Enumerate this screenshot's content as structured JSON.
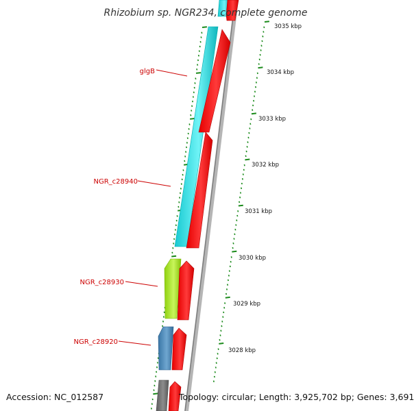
{
  "title": "Rhizobium sp. NGR234, complete genome",
  "genes": [
    {
      "label": "glgB"
    },
    {
      "label": "NGR_c28940"
    },
    {
      "label": "NGR_c28930"
    },
    {
      "label": "NGR_c28920"
    }
  ],
  "kbp_ticks": [
    "3035 kbp",
    "3034 kbp",
    "3033 kbp",
    "3032 kbp",
    "3031 kbp",
    "3030 kbp",
    "3029 kbp",
    "3028 kbp"
  ],
  "footer": {
    "accession": "Accession: NC_012587",
    "topology": "Topology: circular; Length: 3,925,702 bp; Genes: 3,691"
  },
  "colors": {
    "forward_strand": "#ff0000",
    "reverse_cyan": "#00ccd6",
    "reverse_lime": "#a6e81c",
    "reverse_blue": "#4a88b8",
    "reverse_gray": "#707070",
    "backbone": "#9a9a9a",
    "ticks": "#1a8a1a",
    "gene_label": "#cc0000"
  }
}
